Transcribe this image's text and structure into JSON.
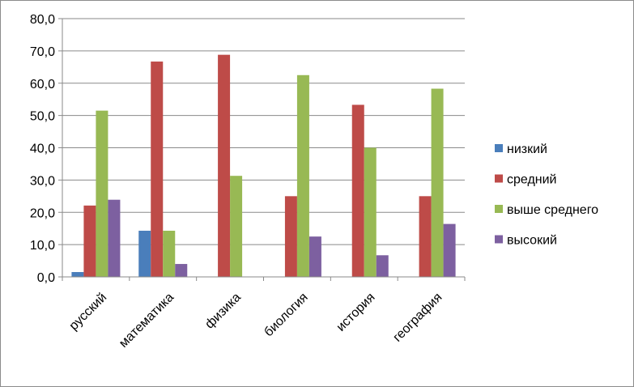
{
  "chart_data": {
    "type": "bar",
    "title": "",
    "xlabel": "",
    "ylabel": "",
    "ylim": [
      0,
      80
    ],
    "ytick_step": 10,
    "ytick_labels": [
      "0,0",
      "10,0",
      "20,0",
      "30,0",
      "40,0",
      "50,0",
      "60,0",
      "70,0",
      "80,0"
    ],
    "grid": true,
    "legend_position": "right",
    "categories": [
      "русский",
      "математика",
      "физика",
      "биология",
      "история",
      "география"
    ],
    "series": [
      {
        "name": "низкий",
        "color": "#4a7ebb",
        "values": [
          1.5,
          14.3,
          0,
          0,
          0,
          0
        ]
      },
      {
        "name": "средний",
        "color": "#be4b48",
        "values": [
          22.1,
          66.7,
          68.8,
          25.0,
          53.3,
          25.0
        ]
      },
      {
        "name": "выше среднего",
        "color": "#98b954",
        "values": [
          51.5,
          14.3,
          31.3,
          62.5,
          40.0,
          58.3
        ]
      },
      {
        "name": "высокий",
        "color": "#7d60a0",
        "values": [
          23.9,
          4.0,
          0,
          12.5,
          6.7,
          16.4
        ]
      }
    ]
  }
}
